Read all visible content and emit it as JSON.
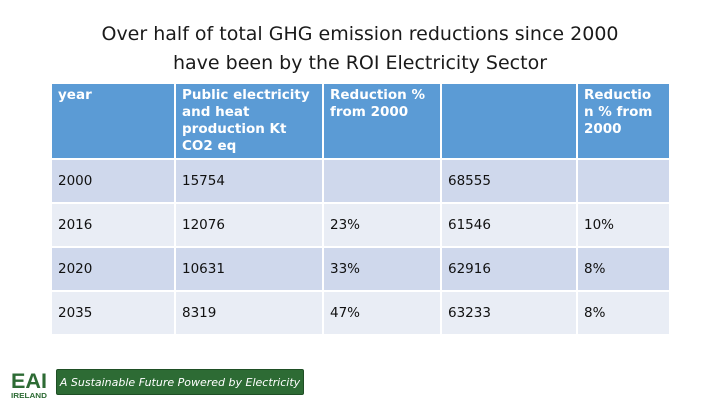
{
  "title": {
    "line1": "Over half of total GHG emission reductions since 2000",
    "line2": "have been by the ROI Electricity Sector"
  },
  "table": {
    "headers": [
      "year",
      "Public electricity and heat production Kt CO2 eq",
      "Reduction % from 2000",
      "",
      "Reductio n % from 2000"
    ],
    "rows": [
      [
        "2000",
        "15754",
        "",
        "68555",
        ""
      ],
      [
        "2016",
        "12076",
        "23%",
        "61546",
        "10%"
      ],
      [
        "2020",
        "10631",
        "33%",
        "62916",
        "8%"
      ],
      [
        "2035",
        "8319",
        "47%",
        "63233",
        "8%"
      ]
    ]
  },
  "footer": {
    "logo_text": "EAI",
    "logo_sub": "IRELAND",
    "tagline": "A Sustainable Future Powered by Electricity"
  },
  "colors": {
    "header_bg": "#5b9bd5",
    "row_dark": "#cfd8ec",
    "row_light": "#e9edf5",
    "brand_green": "#2d6b34"
  }
}
